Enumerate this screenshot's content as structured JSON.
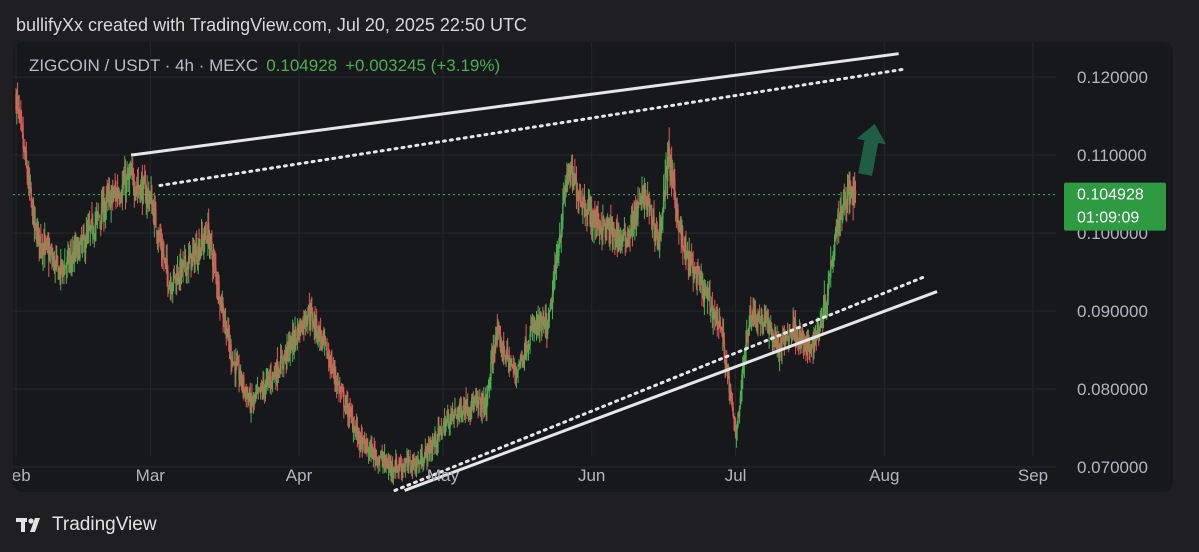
{
  "header": {
    "credit": "bullifyXx created with TradingView.com, Jul 20, 2025 22:50 UTC"
  },
  "legend": {
    "symbol": "ZIGCOIN / USDT · 4h · MEXC",
    "price": "0.104928",
    "change": "+0.003245 (+3.19%)"
  },
  "price_tag": {
    "price": "0.104928",
    "countdown": "01:09:09"
  },
  "footer": {
    "brand": "TradingView"
  },
  "colors": {
    "up": "#4caf50",
    "down": "#e05a5a",
    "price_tag": "#2e9b43",
    "trendline": "#e6e6e6",
    "arrow": "#1f5e45"
  },
  "chart_data": {
    "type": "candlestick",
    "title": "ZIGCOIN / USDT · 4h · MEXC",
    "timeframe": "4h",
    "x_ticks": [
      "Feb",
      "Mar",
      "Apr",
      "May",
      "Jun",
      "Jul",
      "Aug",
      "Sep"
    ],
    "y_ticks": [
      "0.120000",
      "0.110000",
      "0.100000",
      "0.090000",
      "0.080000",
      "0.070000"
    ],
    "ylim": [
      0.0668,
      0.1245
    ],
    "last_price": 0.104928,
    "change": 0.003245,
    "change_pct": 3.19,
    "grid": true,
    "price_path": [
      [
        "2025-02-01",
        0.1175
      ],
      [
        "2025-02-05",
        0.1003
      ],
      [
        "2025-02-10",
        0.095
      ],
      [
        "2025-02-15",
        0.0985
      ],
      [
        "2025-02-20",
        0.104
      ],
      [
        "2025-02-25",
        0.107
      ],
      [
        "2025-03-01",
        0.1045
      ],
      [
        "2025-03-05",
        0.0935
      ],
      [
        "2025-03-10",
        0.097
      ],
      [
        "2025-03-13",
        0.1
      ],
      [
        "2025-03-18",
        0.084
      ],
      [
        "2025-03-22",
        0.078
      ],
      [
        "2025-03-28",
        0.083
      ],
      [
        "2025-04-03",
        0.09
      ],
      [
        "2025-04-06",
        0.086
      ],
      [
        "2025-04-10",
        0.079
      ],
      [
        "2025-04-14",
        0.073
      ],
      [
        "2025-04-20",
        0.07
      ],
      [
        "2025-04-26",
        0.0705
      ],
      [
        "2025-04-29",
        0.073
      ],
      [
        "2025-05-02",
        0.076
      ],
      [
        "2025-05-06",
        0.078
      ],
      [
        "2025-05-10",
        0.078
      ],
      [
        "2025-05-12",
        0.087
      ],
      [
        "2025-05-16",
        0.082
      ],
      [
        "2025-05-20",
        0.088
      ],
      [
        "2025-05-23",
        0.088
      ],
      [
        "2025-05-27",
        0.108
      ],
      [
        "2025-06-01",
        0.102
      ],
      [
        "2025-06-05",
        0.1
      ],
      [
        "2025-06-08",
        0.099
      ],
      [
        "2025-06-12",
        0.105
      ],
      [
        "2025-06-15",
        0.099
      ],
      [
        "2025-06-17",
        0.11
      ],
      [
        "2025-06-20",
        0.098
      ],
      [
        "2025-06-24",
        0.093
      ],
      [
        "2025-06-28",
        0.088
      ],
      [
        "2025-07-01",
        0.074
      ],
      [
        "2025-07-04",
        0.09
      ],
      [
        "2025-07-08",
        0.088
      ],
      [
        "2025-07-10",
        0.085
      ],
      [
        "2025-07-13",
        0.088
      ],
      [
        "2025-07-16",
        0.085
      ],
      [
        "2025-07-18",
        0.087
      ],
      [
        "2025-07-20",
        0.092
      ],
      [
        "2025-07-22",
        0.101
      ],
      [
        "2025-07-24",
        0.105
      ],
      [
        "2025-07-26",
        0.1049
      ]
    ],
    "drawings": {
      "upper_channel_solid": [
        [
          "2025-02-25",
          0.11
        ],
        [
          "2025-08-04",
          0.123
        ]
      ],
      "upper_channel_dotted": [
        [
          "2025-03-03",
          0.1061
        ],
        [
          "2025-08-05",
          0.121
        ]
      ],
      "lower_channel_dotted": [
        [
          "2025-04-21",
          0.067
        ],
        [
          "2025-08-09",
          0.0943
        ]
      ],
      "lower_channel_solid": [
        [
          "2025-04-23",
          0.067
        ],
        [
          "2025-08-12",
          0.0925
        ]
      ],
      "arrow": {
        "direction": "up",
        "from": [
          "2025-07-28",
          0.1075
        ],
        "to": [
          "2025-07-30",
          0.114
        ]
      }
    }
  }
}
